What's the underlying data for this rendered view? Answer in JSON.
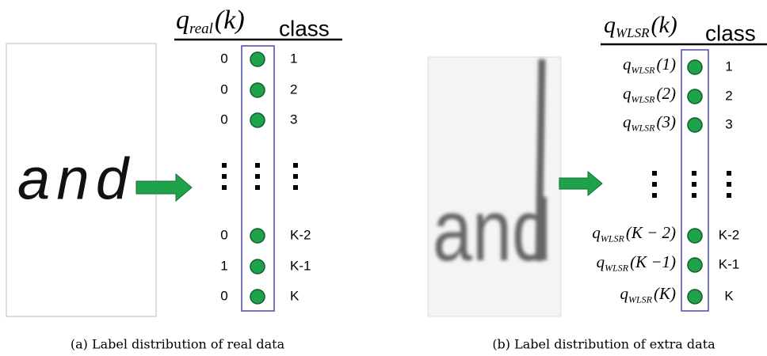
{
  "panels": [
    {
      "header": {
        "symbol": "q",
        "subscript": "real",
        "argument": "(k)"
      },
      "class_header": "class",
      "image_text": "and",
      "rows": [
        {
          "value": 0,
          "class": "1"
        },
        {
          "value": 0,
          "class": "2"
        },
        {
          "value": 0,
          "class": "3"
        },
        {
          "value": 0,
          "class": "K-2"
        },
        {
          "value": 1,
          "class": "K-1"
        },
        {
          "value": 0,
          "class": "K"
        }
      ],
      "caption": "(a) Label distribution of real data"
    },
    {
      "header": {
        "symbol": "q",
        "subscript": "WLSR",
        "argument": "(k)"
      },
      "class_header": "class",
      "image_text": "and",
      "rows": [
        {
          "label": {
            "symbol": "q",
            "subscript": "WLSR",
            "argument": "(1)"
          },
          "class": "1"
        },
        {
          "label": {
            "symbol": "q",
            "subscript": "WLSR",
            "argument": "(2)"
          },
          "class": "2"
        },
        {
          "label": {
            "symbol": "q",
            "subscript": "WLSR",
            "argument": "(3)"
          },
          "class": "3"
        },
        {
          "label": {
            "symbol": "q",
            "subscript": "WLSR",
            "argument": "(K − 2)"
          },
          "class": "K-2"
        },
        {
          "label": {
            "symbol": "q",
            "subscript": "WLSR",
            "argument": "(K −1)"
          },
          "class": "K-1"
        },
        {
          "label": {
            "symbol": "q",
            "subscript": "WLSR",
            "argument": "(K)"
          },
          "class": "K"
        }
      ],
      "caption": "(b) Label distribution of extra data"
    }
  ]
}
